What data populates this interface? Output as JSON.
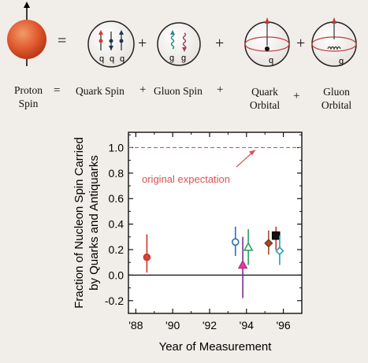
{
  "equation": {
    "proton_label": "Proton Spin",
    "quark_spin": "Quark Spin",
    "gluon_spin": "Gluon Spin",
    "quark_orbital": "Quark Orbital",
    "gluon_orbital": "Gluon Orbital",
    "equals": "=",
    "plus": "+",
    "quark_symbol": "q",
    "gluon_symbol": "g"
  },
  "chart_data": {
    "type": "scatter",
    "ylabel": "Fraction of Nucleon Spin Carried by Quarks and Antiquarks",
    "xlabel": "Year of Measurement",
    "x_tick_labels": [
      "'88",
      "'90",
      "'92",
      "'94",
      "'96"
    ],
    "x_tick_values": [
      1988,
      1990,
      1992,
      1994,
      1996
    ],
    "y_tick_labels": [
      "-0.2",
      "0.0",
      "0.2",
      "0.4",
      "0.6",
      "0.8",
      "1.0"
    ],
    "y_tick_values": [
      -0.2,
      0.0,
      0.2,
      0.4,
      0.6,
      0.8,
      1.0
    ],
    "xlim": [
      1987.6,
      1997.0
    ],
    "ylim": [
      -0.3,
      1.12
    ],
    "reference_line": {
      "y": 1.0,
      "label": "original expectation",
      "color": "#d9534f"
    },
    "zero_line": 0.0,
    "points": [
      {
        "x": 1988.6,
        "y": 0.14,
        "low": 0.02,
        "high": 0.32,
        "marker": "circle",
        "fill": "#d9433a",
        "stroke": "#c9352c",
        "bar": "#c9352c",
        "filled": true
      },
      {
        "x": 1993.4,
        "y": 0.26,
        "low": 0.15,
        "high": 0.38,
        "marker": "circle",
        "fill": "none",
        "stroke": "#2a6fb0",
        "bar": "#2a6fb0",
        "filled": false
      },
      {
        "x": 1993.8,
        "y": 0.08,
        "low": -0.18,
        "high": 0.3,
        "marker": "triangle",
        "fill": "#e040a0",
        "stroke": "#c02f88",
        "bar": "#7a3090",
        "filled": true
      },
      {
        "x": 1994.1,
        "y": 0.22,
        "low": 0.08,
        "high": 0.36,
        "marker": "triangle",
        "fill": "none",
        "stroke": "#2aa060",
        "bar": "#2aa060",
        "filled": false
      },
      {
        "x": 1995.2,
        "y": 0.25,
        "low": 0.16,
        "high": 0.35,
        "marker": "diamond",
        "fill": "#a0502a",
        "stroke": "#7a3b1d",
        "bar": "#a0502a",
        "filled": true
      },
      {
        "x": 1995.6,
        "y": 0.31,
        "low": 0.2,
        "high": 0.38,
        "marker": "square",
        "fill": "#111111",
        "stroke": "#000000",
        "bar": "#c9352c",
        "filled": true
      },
      {
        "x": 1995.8,
        "y": 0.19,
        "low": 0.08,
        "high": 0.31,
        "marker": "diamond",
        "fill": "none",
        "stroke": "#22a0b0",
        "bar": "#22a0b0",
        "filled": false
      }
    ]
  }
}
